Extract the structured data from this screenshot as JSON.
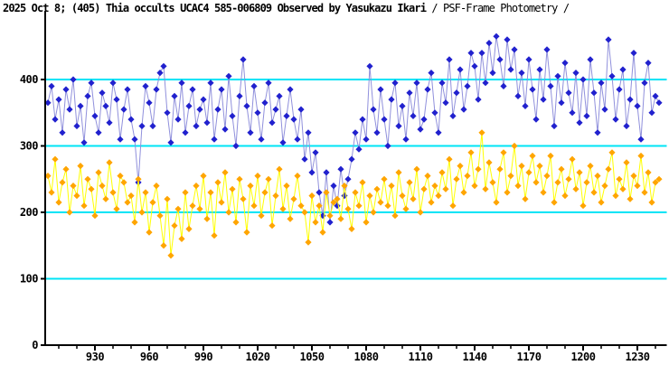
{
  "title": {
    "main": "2025 Oct 8; (405) Thia occults UCAC4 585-006809 Observed by Yasukazu Ikari ",
    "sub": "/ PSF-Frame Photometry /"
  },
  "colors": {
    "background": "#ffffff",
    "axis": "#000000",
    "gridline": "#00E4F6",
    "blue_marker": "#2121CE",
    "blue_line": "#9090DC",
    "orange_marker": "#FFA500",
    "orange_line": "#FFFF00"
  },
  "chart_data": {
    "type": "scatter",
    "title": "2025 Oct 8; (405) Thia occults UCAC4 585-006809 Observed by Yasukazu Ikari / PSF-Frame Photometry /",
    "xlabel": "",
    "ylabel": "",
    "xlim": [
      902.5,
      1247.5
    ],
    "ylim": [
      0,
      505
    ],
    "grid": "horizontal-only",
    "legend_position": "none",
    "x_axis": {
      "major_ticks": [
        930,
        960,
        990,
        1020,
        1050,
        1080,
        1110,
        1140,
        1170,
        1200,
        1230
      ],
      "minor_tick_start": 910,
      "minor_tick_end": 1240,
      "minor_tick_step": 10
    },
    "y_axis": {
      "ticks": [
        0,
        100,
        200,
        300,
        400
      ],
      "gridlines": [
        100,
        200,
        300,
        400
      ]
    },
    "series": [
      {
        "name": "blue",
        "marker": "diamond",
        "marker_color": "#2121CE",
        "line_color": "#9090DC",
        "x_start": 904,
        "x_step": 2,
        "values": [
          365,
          390,
          340,
          370,
          320,
          385,
          355,
          400,
          330,
          360,
          305,
          375,
          395,
          345,
          320,
          380,
          360,
          335,
          395,
          370,
          310,
          355,
          385,
          340,
          310,
          245,
          330,
          390,
          365,
          330,
          385,
          410,
          420,
          350,
          305,
          375,
          340,
          395,
          320,
          360,
          385,
          330,
          355,
          370,
          335,
          395,
          310,
          355,
          385,
          325,
          405,
          345,
          300,
          375,
          430,
          360,
          320,
          390,
          350,
          310,
          365,
          395,
          335,
          355,
          375,
          305,
          345,
          385,
          340,
          310,
          355,
          280,
          320,
          260,
          290,
          230,
          195,
          260,
          185,
          240,
          210,
          265,
          225,
          250,
          280,
          320,
          295,
          340,
          310,
          420,
          355,
          320,
          385,
          340,
          300,
          370,
          395,
          330,
          360,
          310,
          380,
          345,
          395,
          325,
          340,
          385,
          410,
          350,
          320,
          395,
          365,
          430,
          345,
          380,
          415,
          355,
          390,
          440,
          420,
          370,
          440,
          395,
          455,
          410,
          465,
          430,
          390,
          460,
          415,
          445,
          375,
          410,
          360,
          430,
          385,
          340,
          415,
          370,
          445,
          390,
          330,
          405,
          365,
          425,
          380,
          350,
          410,
          335,
          400,
          345,
          430,
          380,
          320,
          395,
          355,
          460,
          405,
          340,
          385,
          415,
          330,
          370,
          440,
          360,
          310,
          395,
          425,
          350,
          375,
          365
        ]
      },
      {
        "name": "orange",
        "marker": "diamond",
        "marker_color": "#FFA500",
        "line_color": "#FFFF00",
        "x_start": 904,
        "x_step": 2,
        "values": [
          255,
          230,
          280,
          215,
          245,
          265,
          200,
          240,
          225,
          270,
          210,
          250,
          235,
          195,
          260,
          240,
          220,
          275,
          230,
          205,
          255,
          245,
          215,
          225,
          185,
          250,
          200,
          230,
          170,
          215,
          240,
          195,
          150,
          220,
          135,
          180,
          205,
          160,
          230,
          175,
          210,
          240,
          205,
          255,
          190,
          230,
          165,
          245,
          215,
          260,
          200,
          235,
          185,
          250,
          220,
          170,
          240,
          210,
          255,
          195,
          230,
          250,
          180,
          225,
          265,
          205,
          240,
          190,
          220,
          255,
          210,
          200,
          155,
          225,
          185,
          210,
          170,
          230,
          195,
          215,
          220,
          190,
          240,
          205,
          175,
          230,
          210,
          245,
          185,
          225,
          200,
          235,
          215,
          250,
          210,
          240,
          195,
          260,
          225,
          205,
          245,
          220,
          265,
          200,
          235,
          255,
          215,
          240,
          225,
          260,
          235,
          280,
          210,
          250,
          270,
          230,
          255,
          290,
          240,
          265,
          320,
          235,
          275,
          245,
          215,
          265,
          290,
          230,
          255,
          300,
          240,
          270,
          220,
          260,
          285,
          245,
          270,
          230,
          255,
          285,
          215,
          245,
          265,
          225,
          250,
          280,
          235,
          260,
          210,
          245,
          270,
          230,
          255,
          215,
          240,
          265,
          290,
          225,
          250,
          235,
          275,
          220,
          255,
          240,
          285,
          230,
          260,
          215,
          245,
          250
        ]
      }
    ]
  }
}
